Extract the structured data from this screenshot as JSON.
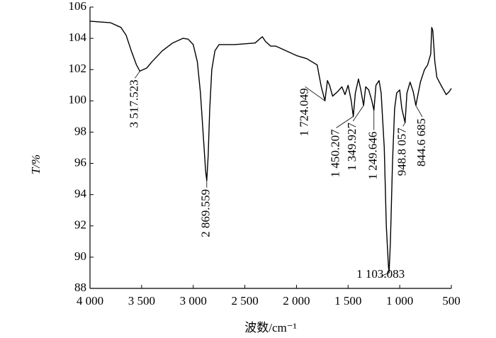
{
  "chart_data": {
    "type": "line",
    "xlabel": "波数/cm⁻¹",
    "ylabel": "T/%",
    "xlim": [
      4000,
      500
    ],
    "ylim": [
      88,
      106
    ],
    "xticks": [
      {
        "value": 4000,
        "label": "4 000"
      },
      {
        "value": 3500,
        "label": "3 500"
      },
      {
        "value": 3000,
        "label": "3 000"
      },
      {
        "value": 2500,
        "label": "2 500"
      },
      {
        "value": 2000,
        "label": "2 000"
      },
      {
        "value": 1500,
        "label": "1 500"
      },
      {
        "value": 1000,
        "label": "1 000"
      },
      500
    ],
    "yticks": [
      88,
      90,
      92,
      94,
      96,
      98,
      100,
      102,
      104,
      106
    ],
    "series": [
      {
        "color": "#000000",
        "x": [
          4000,
          3800,
          3700,
          3650,
          3600,
          3550,
          3517,
          3450,
          3400,
          3300,
          3200,
          3100,
          3050,
          3000,
          2960,
          2930,
          2900,
          2880,
          2869,
          2855,
          2840,
          2820,
          2790,
          2750,
          2600,
          2400,
          2350,
          2330,
          2300,
          2250,
          2200,
          2100,
          2000,
          1900,
          1800,
          1760,
          1724,
          1700,
          1680,
          1650,
          1600,
          1560,
          1530,
          1500,
          1470,
          1450,
          1430,
          1400,
          1380,
          1350,
          1330,
          1300,
          1270,
          1250,
          1230,
          1200,
          1180,
          1150,
          1130,
          1110,
          1103,
          1090,
          1070,
          1050,
          1030,
          1000,
          980,
          948,
          930,
          900,
          870,
          844,
          800,
          760,
          730,
          700,
          690,
          680,
          660,
          640,
          600,
          550,
          520,
          500
        ],
        "values": [
          105.1,
          105.0,
          104.7,
          104.2,
          103.2,
          102.3,
          101.9,
          102.1,
          102.5,
          103.2,
          103.7,
          104.0,
          103.95,
          103.6,
          102.5,
          100.5,
          97.5,
          95.5,
          94.9,
          96.5,
          99.5,
          102.0,
          103.2,
          103.6,
          103.6,
          103.7,
          104.0,
          104.1,
          103.8,
          103.5,
          103.5,
          103.2,
          102.9,
          102.7,
          102.3,
          100.9,
          100.0,
          101.3,
          101.0,
          100.3,
          100.6,
          100.9,
          100.4,
          101.0,
          100.0,
          99.0,
          100.5,
          101.4,
          100.8,
          99.7,
          100.9,
          100.7,
          100.0,
          99.4,
          101.0,
          101.3,
          100.5,
          97.0,
          92.0,
          89.5,
          89.0,
          91.0,
          96.0,
          99.5,
          100.5,
          100.7,
          99.5,
          98.6,
          100.5,
          101.2,
          100.6,
          99.7,
          101.2,
          102.0,
          102.3,
          103.0,
          104.7,
          104.5,
          102.5,
          101.5,
          101.0,
          100.4,
          100.6,
          100.8
        ]
      }
    ],
    "annotations": [
      {
        "text": "3 517.523",
        "x": 3517,
        "y": 101.9
      },
      {
        "text": "2 869.559",
        "x": 2869,
        "y": 94.9
      },
      {
        "text": "1 724.049",
        "x": 1724,
        "y": 100.0
      },
      {
        "text": "1 450.207",
        "x": 1450,
        "y": 99.0
      },
      {
        "text": "1 349.927",
        "x": 1350,
        "y": 99.7
      },
      {
        "text": "1 249.646",
        "x": 1250,
        "y": 99.4
      },
      {
        "text": "1 103.083",
        "x": 1103,
        "y": 89.0
      },
      {
        "text": "948.8 057",
        "x": 948,
        "y": 98.6
      },
      {
        "text": "844.6 685",
        "x": 844,
        "y": 99.7
      }
    ]
  }
}
